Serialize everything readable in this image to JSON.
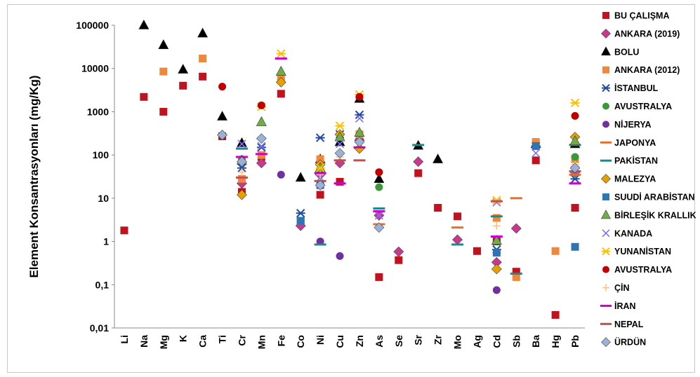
{
  "chart_data": {
    "type": "scatter",
    "title": "",
    "xlabel": "",
    "ylabel": "Element  Konsantrasyonları (mg/Kg)",
    "y_scale": "log",
    "ylim": [
      0.01,
      100000
    ],
    "y_ticks": [
      "0,01",
      "0,1",
      "1",
      "10",
      "100",
      "1000",
      "10000",
      "100000"
    ],
    "categories": [
      "Li",
      "Na",
      "Mg",
      "K",
      "Ca",
      "Ti",
      "Cr",
      "Mn",
      "Fe",
      "Co",
      "Ni",
      "Cu",
      "Zn",
      "As",
      "Se",
      "Sr",
      "Zr",
      "Mo",
      "Ag",
      "Cd",
      "Sb",
      "Ba",
      "Hg",
      "Pb"
    ],
    "legend_position": "right",
    "series": [
      {
        "name": "BU ÇALIŞMA",
        "marker": "square",
        "color": "#c0121f",
        "points": [
          [
            "Li",
            1.8
          ],
          [
            "Na",
            2200
          ],
          [
            "Mg",
            1000
          ],
          [
            "K",
            4000
          ],
          [
            "Ca",
            6500
          ],
          [
            "Ti",
            270
          ],
          [
            "Cr",
            14
          ],
          [
            "Mn",
            90
          ],
          [
            "Fe",
            2600
          ],
          [
            "Co",
            3
          ],
          [
            "Ni",
            12
          ],
          [
            "Cu",
            24
          ],
          [
            "Zn",
            250
          ],
          [
            "As",
            0.15
          ],
          [
            "Se",
            0.37
          ],
          [
            "Sr",
            38
          ],
          [
            "Zr",
            6
          ],
          [
            "Mo",
            3.8
          ],
          [
            "Ag",
            0.6
          ],
          [
            "Cd",
            1
          ],
          [
            "Sb",
            0.2
          ],
          [
            "Ba",
            75
          ],
          [
            "Hg",
            0.02
          ],
          [
            "Pb",
            6
          ]
        ]
      },
      {
        "name": "ANKARA (2019)",
        "marker": "diamond",
        "color": "#c8388f",
        "points": [
          [
            "Cr",
            22
          ],
          [
            "Mn",
            65
          ],
          [
            "Co",
            2.3
          ],
          [
            "Ni",
            35
          ],
          [
            "Cu",
            65
          ],
          [
            "Zn",
            220
          ],
          [
            "As",
            4
          ],
          [
            "Se",
            0.58
          ],
          [
            "Sr",
            70
          ],
          [
            "Mo",
            1.1
          ],
          [
            "Cd",
            0.33
          ],
          [
            "Sb",
            2
          ],
          [
            "Pb",
            40
          ]
        ]
      },
      {
        "name": "BOLU",
        "marker": "triangle",
        "color": "#000000",
        "points": [
          [
            "Na",
            100000
          ],
          [
            "Mg",
            35000
          ],
          [
            "K",
            9500
          ],
          [
            "Ca",
            65000
          ],
          [
            "Ti",
            780
          ],
          [
            "Cr",
            190
          ],
          [
            "Co",
            30
          ],
          [
            "Ni",
            80
          ],
          [
            "Cu",
            200
          ],
          [
            "Zn",
            2000
          ],
          [
            "As",
            28
          ],
          [
            "Sr",
            165
          ],
          [
            "Zr",
            80
          ],
          [
            "Ba",
            180
          ],
          [
            "Pb",
            180
          ]
        ]
      },
      {
        "name": "ANKARA (2012)",
        "marker": "square",
        "color": "#f0883c",
        "points": [
          [
            "Mg",
            8500
          ],
          [
            "Ca",
            17000
          ],
          [
            "Cr",
            28
          ],
          [
            "Mn",
            100
          ],
          [
            "Fe",
            5800
          ],
          [
            "Ni",
            80
          ],
          [
            "Zn",
            300
          ],
          [
            "Cd",
            3.5
          ],
          [
            "Sb",
            0.15
          ],
          [
            "Ba",
            200
          ],
          [
            "Hg",
            0.6
          ],
          [
            "Pb",
            80
          ]
        ]
      },
      {
        "name": "İSTANBUL",
        "marker": "asterisk",
        "color": "#1f4e9c",
        "points": [
          [
            "Cr",
            50
          ],
          [
            "Mn",
            150
          ],
          [
            "Co",
            4.5
          ],
          [
            "Ni",
            250
          ],
          [
            "Cu",
            300
          ],
          [
            "Zn",
            850
          ],
          [
            "Cd",
            0.65
          ],
          [
            "Ba",
            160
          ],
          [
            "Pb",
            28
          ]
        ]
      },
      {
        "name": "AVUSTRALYA",
        "marker": "circle",
        "color": "#3a9a3a",
        "points": [
          [
            "Cr",
            80
          ],
          [
            "Ni",
            40
          ],
          [
            "As",
            18
          ],
          [
            "Pb",
            90
          ]
        ]
      },
      {
        "name": "NİJERYA",
        "marker": "circle",
        "color": "#7030a0",
        "points": [
          [
            "Fe",
            35
          ],
          [
            "Ni",
            1
          ],
          [
            "Cu",
            0.46
          ],
          [
            "Cd",
            0.075
          ]
        ]
      },
      {
        "name": "JAPONYA",
        "marker": "dash",
        "color": "#e0702c",
        "points": [
          [
            "As",
            2.5
          ],
          [
            "Mo",
            2.1
          ],
          [
            "Sb",
            10
          ],
          [
            "Pb",
            35
          ]
        ]
      },
      {
        "name": "PAKİSTAN",
        "marker": "dash",
        "color": "#1b8a8a",
        "points": [
          [
            "Cr",
            140
          ],
          [
            "Ni",
            0.85
          ],
          [
            "As",
            5.8
          ],
          [
            "Sr",
            170
          ],
          [
            "Mo",
            0.85
          ],
          [
            "Cd",
            3.8
          ],
          [
            "Sb",
            0.18
          ],
          [
            "Pb",
            170
          ]
        ]
      },
      {
        "name": "MALEZYA",
        "marker": "diamond",
        "color": "#e6a000",
        "points": [
          [
            "Cr",
            12
          ],
          [
            "Fe",
            4800
          ],
          [
            "Ni",
            60
          ],
          [
            "Cu",
            300
          ],
          [
            "Zn",
            140
          ],
          [
            "Cd",
            0.23
          ],
          [
            "Pb",
            260
          ]
        ]
      },
      {
        "name": "SUUDİ ARABİSTAN",
        "marker": "square",
        "color": "#2e75b6",
        "points": [
          [
            "Co",
            3
          ],
          [
            "Ni",
            20
          ],
          [
            "Cd",
            0.55
          ],
          [
            "Ba",
            160
          ],
          [
            "Pb",
            0.75
          ]
        ]
      },
      {
        "name": "BİRLEŞİK KRALLIK",
        "marker": "triangle",
        "color": "#70ad47",
        "points": [
          [
            "Cr",
            75
          ],
          [
            "Mn",
            580
          ],
          [
            "Fe",
            8500
          ],
          [
            "Ni",
            50
          ],
          [
            "Cu",
            260
          ],
          [
            "Zn",
            330
          ],
          [
            "Cd",
            1.05
          ],
          [
            "Pb",
            210
          ]
        ]
      },
      {
        "name": "KANADA",
        "marker": "x",
        "color": "#8470ff",
        "points": [
          [
            "Cr",
            180
          ],
          [
            "Mn",
            160
          ],
          [
            "Ni",
            30
          ],
          [
            "Cu",
            180
          ],
          [
            "Zn",
            700
          ],
          [
            "As",
            4
          ],
          [
            "Cd",
            8
          ],
          [
            "Ba",
            110
          ],
          [
            "Pb",
            45
          ]
        ]
      },
      {
        "name": "YUNANİSTAN",
        "marker": "asterisk",
        "color": "#ffc000",
        "points": [
          [
            "Mn",
            1300
          ],
          [
            "Fe",
            22000
          ],
          [
            "Ni",
            50
          ],
          [
            "Cu",
            470
          ],
          [
            "Zn",
            2500
          ],
          [
            "Cd",
            9
          ],
          [
            "Pb",
            1600
          ]
        ]
      },
      {
        "name": "AVUSTRALYA",
        "marker": "circle",
        "color": "#c00000",
        "points": [
          [
            "Ti",
            3800
          ],
          [
            "Mn",
            1400
          ],
          [
            "Zn",
            2200
          ],
          [
            "As",
            40
          ],
          [
            "Pb",
            800
          ]
        ]
      },
      {
        "name": "ÇİN",
        "marker": "plus",
        "color": "#ffc080",
        "points": [
          [
            "Cr",
            40
          ],
          [
            "Ni",
            35
          ],
          [
            "Cu",
            90
          ],
          [
            "Zn",
            200
          ],
          [
            "Cd",
            2.3
          ],
          [
            "Pb",
            60
          ]
        ]
      },
      {
        "name": "İRAN",
        "marker": "dash",
        "color": "#cc00cc",
        "points": [
          [
            "Cr",
            90
          ],
          [
            "Mn",
            105
          ],
          [
            "Fe",
            17000
          ],
          [
            "Ni",
            38
          ],
          [
            "Cu",
            22
          ],
          [
            "Zn",
            150
          ],
          [
            "As",
            5
          ],
          [
            "Cd",
            1.3
          ],
          [
            "Pb",
            22
          ]
        ]
      },
      {
        "name": "NEPAL",
        "marker": "dash",
        "color": "#c0504d",
        "points": [
          [
            "Cr",
            30
          ],
          [
            "Ni",
            25
          ],
          [
            "Cu",
            75
          ],
          [
            "Zn",
            75
          ],
          [
            "Cd",
            8.5
          ],
          [
            "Pb",
            42
          ]
        ]
      },
      {
        "name": "ÜRDÜN",
        "marker": "diamond",
        "color": "#9bb2d6",
        "points": [
          [
            "Ti",
            290
          ],
          [
            "Cr",
            70
          ],
          [
            "Mn",
            240
          ],
          [
            "Ni",
            20
          ],
          [
            "Cu",
            110
          ],
          [
            "Zn",
            200
          ],
          [
            "As",
            2.1
          ],
          [
            "Pb",
            50
          ]
        ]
      }
    ]
  }
}
